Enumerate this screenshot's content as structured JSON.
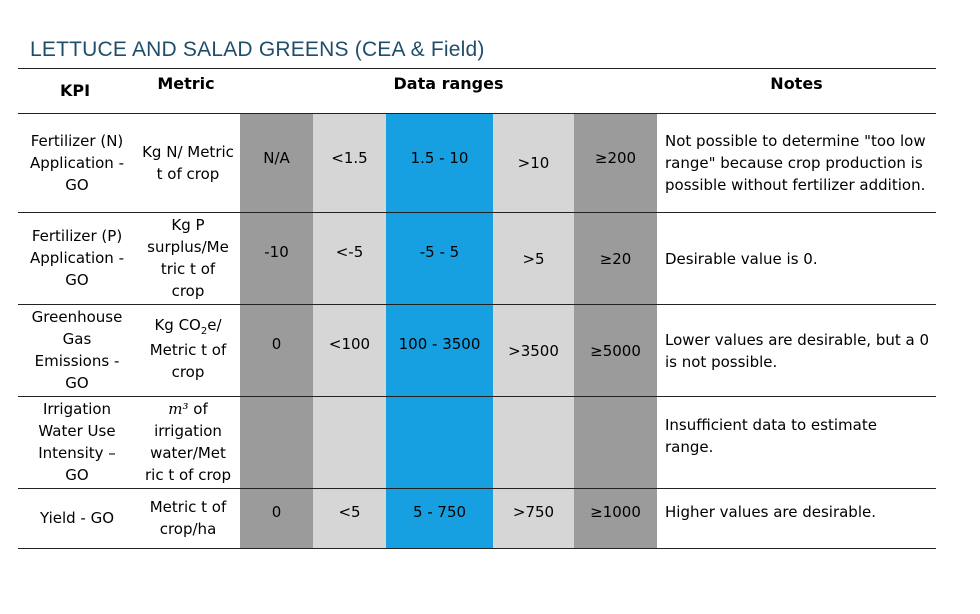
{
  "title": "LETTUCE AND SALAD GREENS (CEA & Field)",
  "headers": {
    "kpi": "KPI",
    "metric": "Metric",
    "ranges": "Data ranges",
    "notes": "Notes"
  },
  "rows": [
    {
      "kpi": "Fertilizer (N) Application - GO",
      "metric": "Kg N/ Metric t of crop",
      "ranges": [
        "N/A",
        "<1.5",
        "1.5 - 10",
        ">10",
        "≥200"
      ],
      "note": "Not possible to determine \"too low range\" because crop production is possible without fertilizer addition."
    },
    {
      "kpi": "Fertilizer (P) Application - GO",
      "metric": "Kg P surplus/Me tric t of crop",
      "ranges": [
        "-10",
        "<-5",
        "-5 - 5",
        ">5",
        "≥20"
      ],
      "note": "Desirable value is 0."
    },
    {
      "kpi": "Greenhouse Gas Emissions - GO",
      "metric_main": "Kg CO",
      "metric_sub": "2",
      "metric_rest": "e/ Metric t of crop",
      "ranges": [
        "0",
        "<100",
        "100 - 3500",
        ">3500",
        "≥5000"
      ],
      "note": "Lower values are desirable, but a 0 is not possible."
    },
    {
      "kpi": "Irrigation Water Use Intensity – GO",
      "metric_m3": "m³",
      "metric_rest": " of irrigation water/Met ric t of crop",
      "ranges": [
        "",
        "",
        "",
        "",
        ""
      ],
      "note": "Insufficient data to estimate range."
    },
    {
      "kpi": "Yield - GO",
      "metric": "Metric t of crop/ha",
      "ranges": [
        "0",
        "<5",
        "5 - 750",
        ">750",
        "≥1000"
      ],
      "note": "Higher values are desirable."
    }
  ],
  "colors": {
    "dark": "#9b9b9b",
    "light": "#d6d6d6",
    "blue": "#17a0e1",
    "title": "#1f4e6b"
  }
}
